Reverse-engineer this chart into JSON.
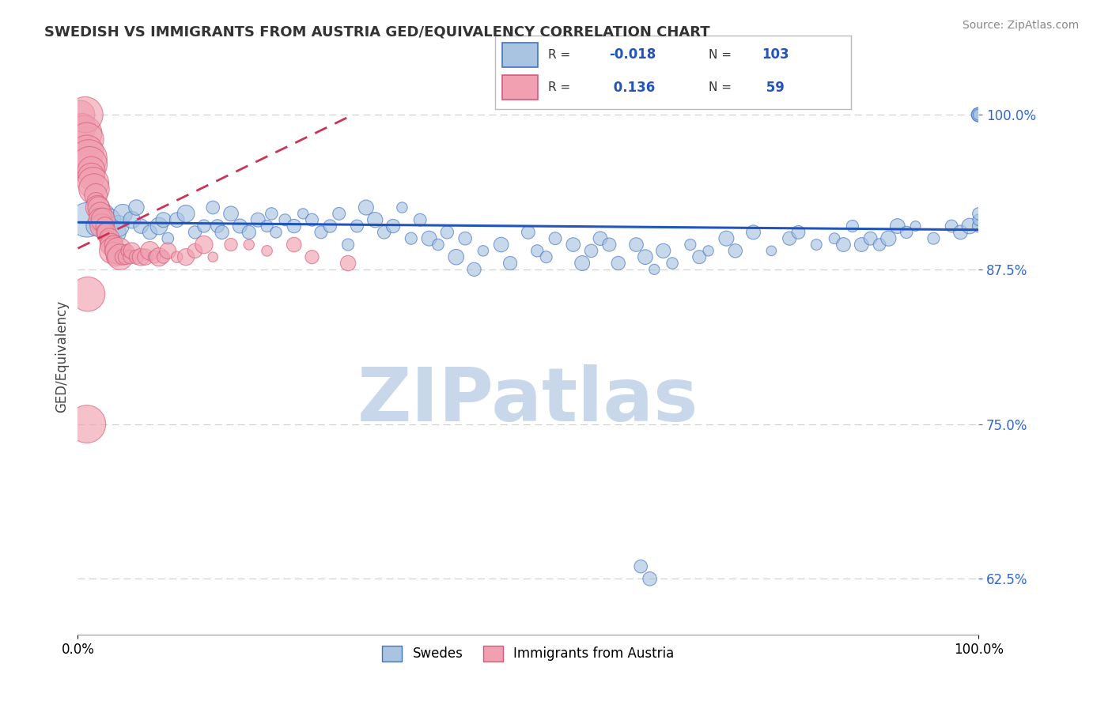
{
  "title": "SWEDISH VS IMMIGRANTS FROM AUSTRIA GED/EQUIVALENCY CORRELATION CHART",
  "source_text": "Source: ZipAtlas.com",
  "ylabel": "GED/Equivalency",
  "xlim": [
    0,
    100
  ],
  "ylim": [
    58,
    103
  ],
  "yticks": [
    62.5,
    75.0,
    87.5,
    100.0
  ],
  "xtick_labels": [
    "0.0%",
    "100.0%"
  ],
  "ytick_labels": [
    "62.5%",
    "75.0%",
    "87.5%",
    "100.0%"
  ],
  "grid_color": "#cccccc",
  "background_color": "#ffffff",
  "legend_labels": [
    "Swedes",
    "Immigrants from Austria"
  ],
  "blue_color": "#a8c4e0",
  "pink_color": "#f0a0b0",
  "blue_edge_color": "#4472c4",
  "pink_edge_color": "#d45b7a",
  "blue_line_color": "#2255bb",
  "pink_line_color": "#cc3355",
  "watermark": "ZIPatlas",
  "watermark_color": "#c8d8ea",
  "blue_scatter_x": [
    1.0,
    2.0,
    3.0,
    3.5,
    4.0,
    4.5,
    5.0,
    6.0,
    6.5,
    7.0,
    8.0,
    9.0,
    9.5,
    10.0,
    11.0,
    12.0,
    13.0,
    14.0,
    15.0,
    15.5,
    16.0,
    17.0,
    18.0,
    19.0,
    20.0,
    21.0,
    21.5,
    22.0,
    23.0,
    24.0,
    25.0,
    26.0,
    27.0,
    28.0,
    29.0,
    30.0,
    31.0,
    32.0,
    33.0,
    34.0,
    35.0,
    36.0,
    37.0,
    38.0,
    39.0,
    40.0,
    41.0,
    42.0,
    43.0,
    44.0,
    45.0,
    47.0,
    48.0,
    50.0,
    51.0,
    52.0,
    53.0,
    55.0,
    56.0,
    57.0,
    58.0,
    59.0,
    60.0,
    62.0,
    63.0,
    64.0,
    65.0,
    66.0,
    68.0,
    69.0,
    70.0,
    72.0,
    73.0,
    75.0,
    77.0,
    79.0,
    80.0,
    82.0,
    84.0,
    85.0,
    86.0,
    87.0,
    88.0,
    89.0,
    90.0,
    91.0,
    92.0,
    93.0,
    95.0,
    97.0,
    98.0,
    99.0,
    100.0,
    100.0,
    100.0,
    100.0,
    100.0,
    100.0,
    100.0,
    100.0,
    62.5,
    63.5
  ],
  "blue_scatter_y": [
    91.5,
    91.0,
    92.0,
    91.5,
    90.5,
    91.0,
    92.0,
    91.5,
    92.5,
    91.0,
    90.5,
    91.0,
    91.5,
    90.0,
    91.5,
    92.0,
    90.5,
    91.0,
    92.5,
    91.0,
    90.5,
    92.0,
    91.0,
    90.5,
    91.5,
    91.0,
    92.0,
    90.5,
    91.5,
    91.0,
    92.0,
    91.5,
    90.5,
    91.0,
    92.0,
    89.5,
    91.0,
    92.5,
    91.5,
    90.5,
    91.0,
    92.5,
    90.0,
    91.5,
    90.0,
    89.5,
    90.5,
    88.5,
    90.0,
    87.5,
    89.0,
    89.5,
    88.0,
    90.5,
    89.0,
    88.5,
    90.0,
    89.5,
    88.0,
    89.0,
    90.0,
    89.5,
    88.0,
    89.5,
    88.5,
    87.5,
    89.0,
    88.0,
    89.5,
    88.5,
    89.0,
    90.0,
    89.0,
    90.5,
    89.0,
    90.0,
    90.5,
    89.5,
    90.0,
    89.5,
    91.0,
    89.5,
    90.0,
    89.5,
    90.0,
    91.0,
    90.5,
    91.0,
    90.0,
    91.0,
    90.5,
    91.0,
    100.0,
    100.0,
    100.0,
    100.0,
    100.0,
    91.0,
    91.5,
    92.0,
    63.5,
    62.5
  ],
  "pink_scatter_x": [
    0.3,
    0.5,
    0.7,
    0.8,
    1.0,
    1.0,
    1.2,
    1.3,
    1.5,
    1.5,
    1.7,
    1.8,
    2.0,
    2.0,
    2.2,
    2.3,
    2.5,
    2.5,
    2.7,
    2.8,
    3.0,
    3.0,
    3.2,
    3.3,
    3.5,
    3.5,
    3.7,
    3.8,
    4.0,
    4.0,
    4.2,
    4.5,
    4.7,
    5.0,
    5.3,
    5.5,
    5.8,
    6.0,
    6.5,
    7.0,
    7.5,
    8.0,
    8.5,
    9.0,
    9.5,
    10.0,
    11.0,
    12.0,
    13.0,
    14.0,
    15.0,
    17.0,
    19.0,
    21.0,
    24.0,
    26.0,
    30.0,
    1.1,
    1.0
  ],
  "pink_scatter_y": [
    100.0,
    99.0,
    98.5,
    100.0,
    98.0,
    97.0,
    96.5,
    96.0,
    95.5,
    95.0,
    94.5,
    94.0,
    93.5,
    93.0,
    92.5,
    92.5,
    92.0,
    91.5,
    91.0,
    91.5,
    91.0,
    90.5,
    90.5,
    90.0,
    90.0,
    89.5,
    89.5,
    89.0,
    89.5,
    89.0,
    88.5,
    89.0,
    88.5,
    88.5,
    88.5,
    89.0,
    88.5,
    89.0,
    88.5,
    88.5,
    88.5,
    89.0,
    88.5,
    88.5,
    88.5,
    89.0,
    88.5,
    88.5,
    89.0,
    89.5,
    88.5,
    89.5,
    89.5,
    89.0,
    89.5,
    88.5,
    88.0,
    85.5,
    75.0
  ],
  "blue_trend_x": [
    0,
    100
  ],
  "blue_trend_y": [
    91.3,
    90.7
  ],
  "pink_trend_x": [
    0,
    30
  ],
  "pink_trend_y": [
    89.2,
    99.8
  ]
}
